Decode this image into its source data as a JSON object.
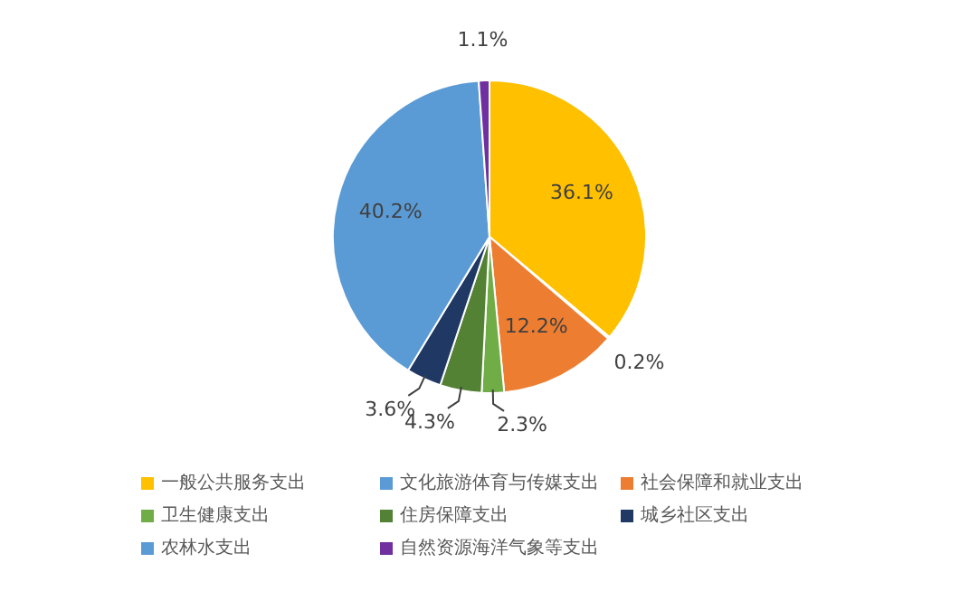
{
  "chart_data": {
    "type": "pie",
    "categories": [
      "一般公共服务支出",
      "文化旅游体育与传媒支出",
      "社会保障和就业支出",
      "卫生健康支出",
      "住房保障支出",
      "城乡社区支出",
      "农林水支出",
      "自然资源海洋气象等支出"
    ],
    "values": [
      36.1,
      0.2,
      12.2,
      2.3,
      4.3,
      3.6,
      40.2,
      1.1
    ],
    "colors": [
      "#ffc000",
      "#5b9bd5",
      "#ed7d31",
      "#70ad47",
      "#548235",
      "#203864",
      "#5b9bd5",
      "#7030a0"
    ],
    "value_labels": [
      "36.1%",
      "0.2%",
      "12.2%",
      "2.3%",
      "4.3%",
      "3.6%",
      "40.2%",
      "1.1%"
    ],
    "legend": "bottom"
  }
}
